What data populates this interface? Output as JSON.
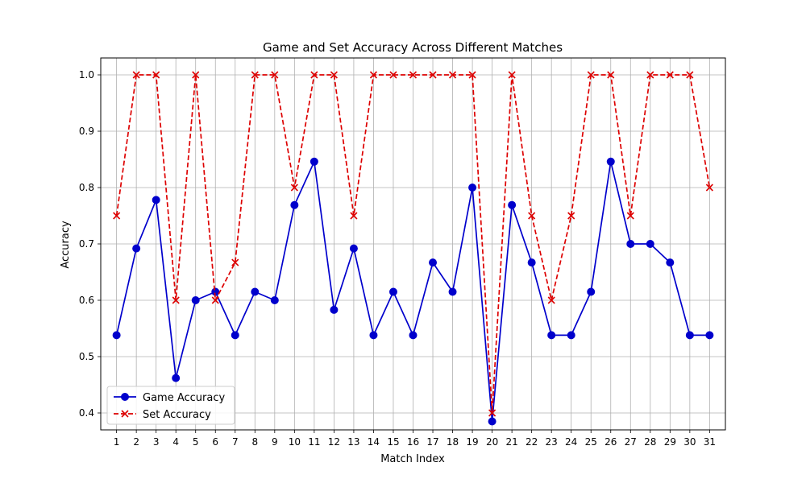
{
  "chart_data": {
    "type": "line",
    "title": "Game and Set Accuracy Across Different Matches",
    "xlabel": "Match Index",
    "ylabel": "Accuracy",
    "x": [
      1,
      2,
      3,
      4,
      5,
      6,
      7,
      8,
      9,
      10,
      11,
      12,
      13,
      14,
      15,
      16,
      17,
      18,
      19,
      20,
      21,
      22,
      23,
      24,
      25,
      26,
      27,
      28,
      29,
      30,
      31
    ],
    "xlim": [
      0.2,
      31.8
    ],
    "ylim": [
      0.37,
      1.03
    ],
    "yticks": [
      0.4,
      0.5,
      0.6,
      0.7,
      0.8,
      0.9,
      1.0
    ],
    "yticklabels": [
      "0.4",
      "0.5",
      "0.6",
      "0.7",
      "0.8",
      "0.9",
      "1.0"
    ],
    "grid": true,
    "legend_position": "lower-left",
    "series": [
      {
        "name": "Game Accuracy",
        "color": "#0000cc",
        "line_style": "solid",
        "marker": "circle",
        "values": [
          0.538,
          0.692,
          0.778,
          0.462,
          0.6,
          0.615,
          0.538,
          0.615,
          0.6,
          0.769,
          0.846,
          0.583,
          0.692,
          0.538,
          0.615,
          0.538,
          0.667,
          0.615,
          0.8,
          0.385,
          0.769,
          0.667,
          0.538,
          0.538,
          0.615,
          0.846,
          0.7,
          0.7,
          0.667,
          0.538,
          0.538
        ]
      },
      {
        "name": "Set Accuracy",
        "color": "#dd0000",
        "line_style": "dashed",
        "marker": "x",
        "values": [
          0.75,
          1.0,
          1.0,
          0.6,
          1.0,
          0.6,
          0.667,
          1.0,
          1.0,
          0.8,
          1.0,
          1.0,
          0.75,
          1.0,
          1.0,
          1.0,
          1.0,
          1.0,
          1.0,
          0.4,
          1.0,
          0.75,
          0.6,
          0.75,
          1.0,
          1.0,
          0.75,
          1.0,
          1.0,
          1.0,
          0.8
        ]
      }
    ]
  }
}
